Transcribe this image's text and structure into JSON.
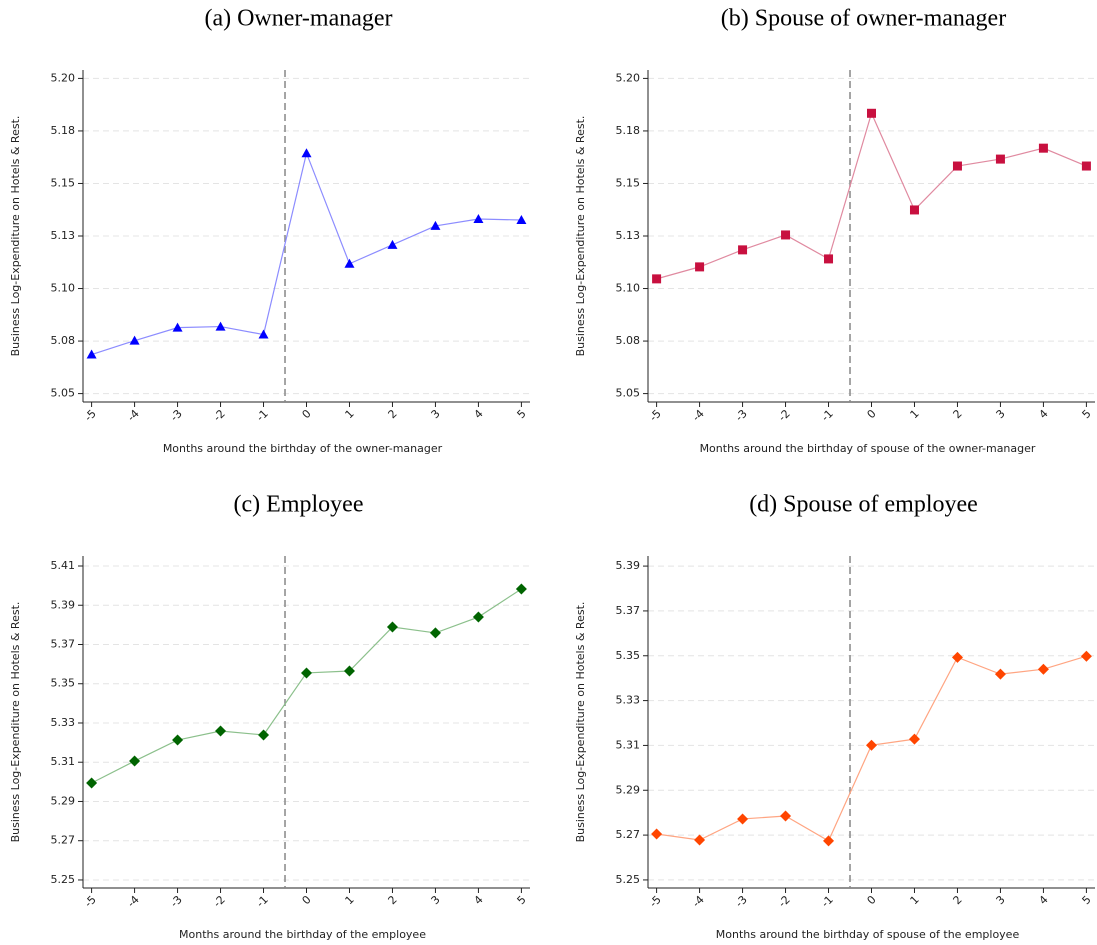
{
  "chart_data": [
    {
      "type": "line",
      "title": "(a) Owner-manager",
      "xlabel": "Months around the birthday of the owner-manager",
      "ylabel": "Business Log-Expenditure on Hotels & Rest.",
      "x": [
        -5,
        -4,
        -3,
        -2,
        -1,
        0,
        1,
        2,
        3,
        4,
        5
      ],
      "values": [
        5.0686,
        5.0752,
        5.0814,
        5.0819,
        5.0781,
        5.1644,
        5.1118,
        5.1208,
        5.1298,
        5.1331,
        5.1326
      ],
      "color": "#0000ff",
      "line_color": "#8c8cff",
      "marker": "triangle",
      "xlim": [
        -5.2,
        5.2
      ],
      "xticks": [
        -5,
        -4,
        -3,
        -2,
        -1,
        0,
        1,
        2,
        3,
        4,
        5
      ],
      "ylim": [
        5.046,
        5.204
      ],
      "yticks": [
        5.05,
        {
          "value": 5.075,
          "label": "5.08"
        },
        {
          "value": 5.1,
          "label": "5.10"
        },
        {
          "value": 5.125,
          "label": "5.13"
        },
        5.15,
        {
          "value": 5.175,
          "label": "5.18"
        },
        {
          "value": 5.2,
          "label": "5.20"
        }
      ],
      "vline": -0.5,
      "grid": true
    },
    {
      "type": "line",
      "title": "(b) Spouse of owner-manager",
      "xlabel": "Months around the birthday of spouse of the owner-manager",
      "ylabel": "Business Log-Expenditure on Hotels & Rest.",
      "x": [
        -5,
        -4,
        -3,
        -2,
        -1,
        0,
        1,
        2,
        3,
        4,
        5
      ],
      "values": [
        5.1046,
        5.1103,
        5.1184,
        5.1255,
        5.1141,
        5.1834,
        5.1374,
        5.1583,
        5.1616,
        5.1668,
        5.1583
      ],
      "color": "#c8103f",
      "line_color": "#e08aa0",
      "marker": "square",
      "xlim": [
        -5.2,
        5.2
      ],
      "xticks": [
        -5,
        -4,
        -3,
        -2,
        -1,
        0,
        1,
        2,
        3,
        4,
        5
      ],
      "ylim": [
        5.046,
        5.204
      ],
      "yticks": [
        5.05,
        {
          "value": 5.075,
          "label": "5.08"
        },
        {
          "value": 5.1,
          "label": "5.10"
        },
        {
          "value": 5.125,
          "label": "5.13"
        },
        5.15,
        {
          "value": 5.175,
          "label": "5.18"
        },
        {
          "value": 5.2,
          "label": "5.20"
        }
      ],
      "vline": -0.5,
      "grid": true
    },
    {
      "type": "line",
      "title": "(c) Employee",
      "xlabel": "Months around the birthday of the employee",
      "ylabel": "Business Log-Expenditure on Hotels & Rest.",
      "x": [
        -5,
        -4,
        -3,
        -2,
        -1,
        0,
        1,
        2,
        3,
        4,
        5
      ],
      "values": [
        5.2994,
        5.3106,
        5.3213,
        5.3259,
        5.3239,
        5.3555,
        5.3565,
        5.3789,
        5.3759,
        5.384,
        5.3983
      ],
      "color": "#006400",
      "line_color": "#8cc08c",
      "marker": "diamond",
      "xlim": [
        -5.2,
        5.2
      ],
      "xticks": [
        -5,
        -4,
        -3,
        -2,
        -1,
        0,
        1,
        2,
        3,
        4,
        5
      ],
      "ylim": [
        5.2459,
        5.4151
      ],
      "yticks": [
        5.25,
        5.27,
        5.29,
        5.31,
        5.33,
        5.35,
        5.37,
        5.39,
        5.41
      ],
      "vline": -0.5,
      "grid": true
    },
    {
      "type": "line",
      "title": "(d) Spouse of employee",
      "xlabel": "Months around the birthday of spouse of the employee",
      "ylabel": "Business Log-Expenditure on Hotels & Rest.",
      "x": [
        -5,
        -4,
        -3,
        -2,
        -1,
        0,
        1,
        2,
        3,
        4,
        5
      ],
      "values": [
        5.2705,
        5.2678,
        5.2772,
        5.2785,
        5.2674,
        5.3101,
        5.3128,
        5.3493,
        5.3418,
        5.344,
        5.3498
      ],
      "color": "#ff4500",
      "line_color": "#ffa582",
      "marker": "diamond",
      "xlim": [
        -5.2,
        5.2
      ],
      "xticks": [
        -5,
        -4,
        -3,
        -2,
        -1,
        0,
        1,
        2,
        3,
        4,
        5
      ],
      "ylim": [
        5.2464,
        5.3945
      ],
      "yticks": [
        5.25,
        5.27,
        5.29,
        5.31,
        5.33,
        5.35,
        5.37,
        5.39
      ],
      "vline": -0.5,
      "grid": true
    }
  ]
}
